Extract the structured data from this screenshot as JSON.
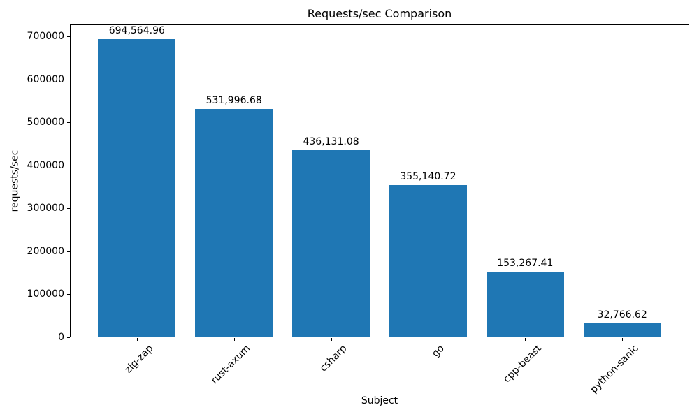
{
  "chart_data": {
    "type": "bar",
    "title": "Requests/sec Comparison",
    "xlabel": "Subject",
    "ylabel": "requests/sec",
    "categories": [
      "zig-zap",
      "rust-axum",
      "csharp",
      "go",
      "cpp-beast",
      "python-sanic"
    ],
    "values": [
      694564.96,
      531996.68,
      436131.08,
      355140.72,
      153267.41,
      32766.62
    ],
    "value_labels": [
      "694,564.96",
      "531,996.68",
      "436,131.08",
      "355,140.72",
      "153,267.41",
      "32,766.62"
    ],
    "bar_color": "#1f77b4",
    "ylim": [
      0,
      729293
    ],
    "xlim": [
      -0.69,
      5.69
    ],
    "yticks": [
      0,
      100000,
      200000,
      300000,
      400000,
      500000,
      600000,
      700000
    ],
    "bar_width_units": 0.8,
    "grid": false,
    "legend": "none"
  }
}
